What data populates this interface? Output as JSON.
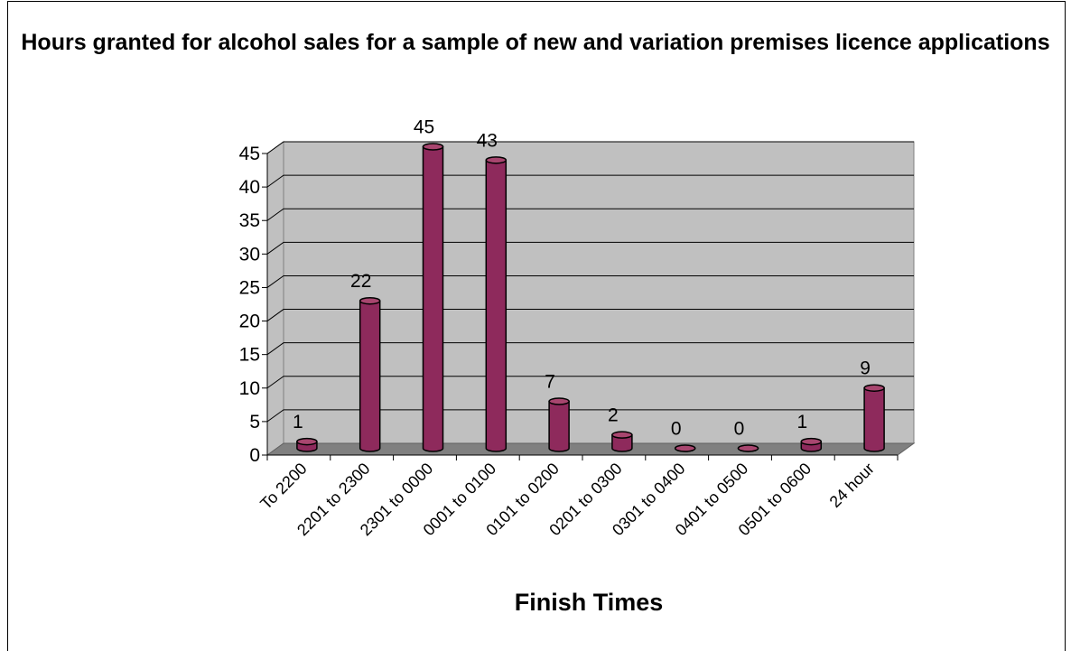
{
  "chart_data": {
    "type": "bar",
    "title": "Hours granted for alcohol sales for a sample of new and variation premises licence applications",
    "xlabel": "Finish Times",
    "ylabel": "",
    "categories": [
      "To 2200",
      "2201 to 2300",
      "2301 to 0000",
      "0001 to 0100",
      "0101 to 0200",
      "0201 to 0300",
      "0301 to 0400",
      "0401 to 0500",
      "0501 to 0600",
      "24 hour"
    ],
    "values": [
      1,
      22,
      45,
      43,
      7,
      2,
      0,
      0,
      1,
      9
    ],
    "ylim": [
      0,
      45
    ],
    "yticks": [
      0,
      5,
      10,
      15,
      20,
      25,
      30,
      35,
      40,
      45
    ],
    "grid": true,
    "legend": "none",
    "colors": {
      "bar_front": "#8e2a5c",
      "bar_top": "#a8466f",
      "wall": "#c0c0c0",
      "floor": "#808080",
      "gridline": "#000000"
    }
  }
}
